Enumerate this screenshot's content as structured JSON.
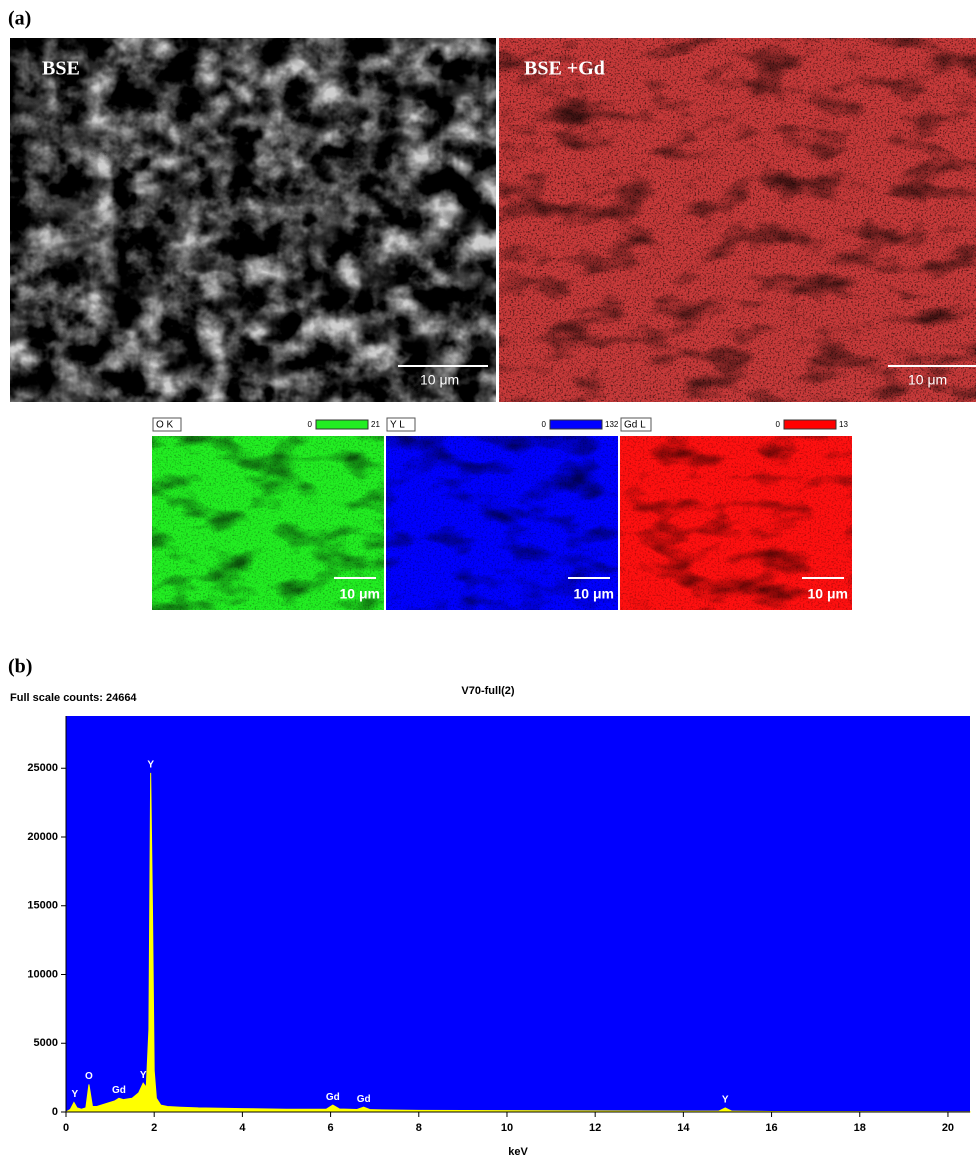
{
  "panel_a": {
    "label": "(a)",
    "images": [
      {
        "title": "BSE",
        "scale": "10 μm"
      },
      {
        "title": "BSE +Gd",
        "scale": "10 μm"
      }
    ],
    "maps": [
      {
        "title": "O K",
        "min": 0,
        "max": 21,
        "scale": "10 μm"
      },
      {
        "title": "Y L",
        "min": 0,
        "max": 132,
        "scale": "10 μm"
      },
      {
        "title": "Gd L",
        "min": 0,
        "max": 13,
        "scale": "10 μm"
      }
    ]
  },
  "chart_data": {
    "type": "area",
    "panel_label": "(b)",
    "subtitle": "Full scale counts: 24664",
    "title": "V70-full(2)",
    "x_label": "keV",
    "color": "#ffff00",
    "background": "#0000ff",
    "x": [
      0,
      0.1,
      0.18,
      0.25,
      0.35,
      0.45,
      0.52,
      0.6,
      0.7,
      0.9,
      1.1,
      1.2,
      1.3,
      1.5,
      1.65,
      1.75,
      1.82,
      1.88,
      1.92,
      1.96,
      2.0,
      2.05,
      2.15,
      2.3,
      2.6,
      3,
      4,
      5,
      5.9,
      6.05,
      6.2,
      6.6,
      6.75,
      6.9,
      8,
      10,
      12,
      14,
      14.8,
      14.95,
      15.1,
      16,
      18,
      20,
      20.5
    ],
    "values": [
      0,
      200,
      700,
      300,
      200,
      300,
      2000,
      400,
      400,
      600,
      800,
      1000,
      900,
      1000,
      1400,
      2100,
      1800,
      6000,
      24664,
      15000,
      3000,
      1000,
      500,
      400,
      350,
      300,
      250,
      200,
      200,
      500,
      220,
      180,
      350,
      170,
      120,
      100,
      80,
      60,
      60,
      300,
      60,
      40,
      30,
      20,
      20
    ],
    "annotations": [
      {
        "label": "Y",
        "x": 0.2,
        "y": 700
      },
      {
        "label": "O",
        "x": 0.52,
        "y": 2000
      },
      {
        "label": "Gd",
        "x": 1.2,
        "y": 1000
      },
      {
        "label": "Y",
        "x": 1.75,
        "y": 2100
      },
      {
        "label": "Y",
        "x": 1.92,
        "y": 24664
      },
      {
        "label": "Gd",
        "x": 6.05,
        "y": 500
      },
      {
        "label": "Gd",
        "x": 6.75,
        "y": 350
      },
      {
        "label": "Y",
        "x": 14.95,
        "y": 300
      }
    ],
    "xlim": [
      0,
      20.5
    ],
    "xticks": [
      0,
      2,
      4,
      6,
      8,
      10,
      12,
      14,
      16,
      18,
      20
    ],
    "ylim": [
      0,
      28800
    ],
    "yticks": [
      0,
      5000,
      10000,
      15000,
      20000,
      25000
    ]
  }
}
